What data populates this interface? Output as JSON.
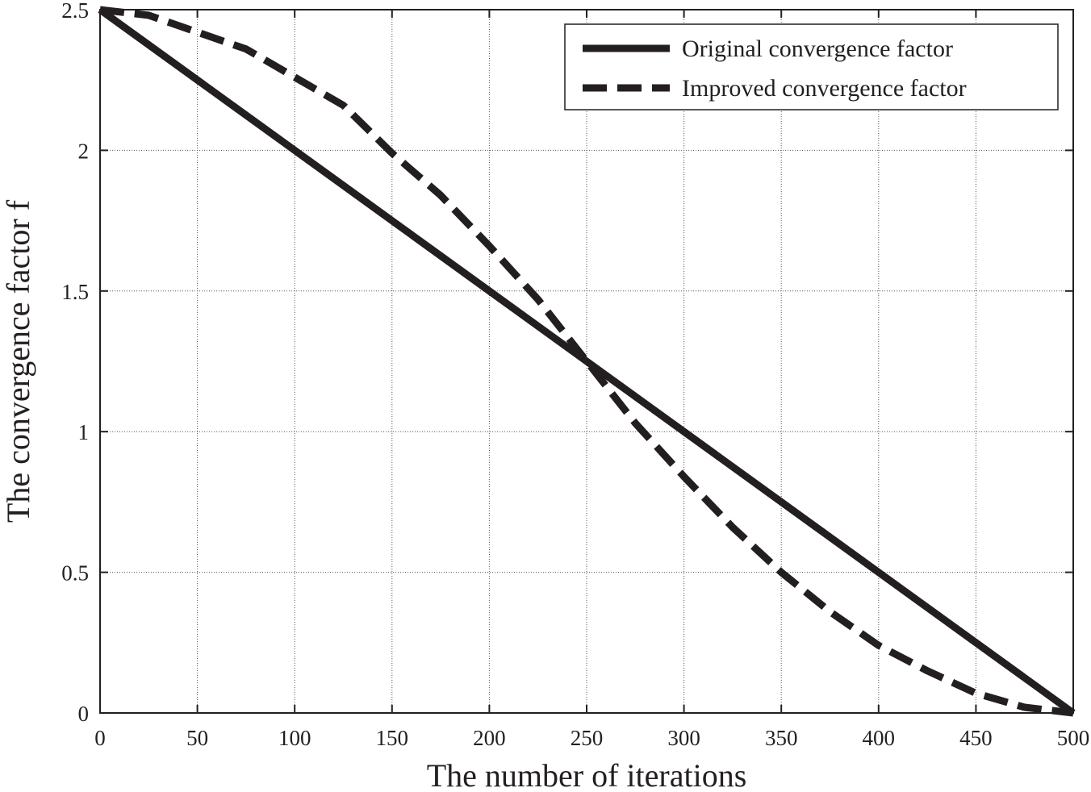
{
  "chart_data": {
    "type": "line",
    "title": "",
    "xlabel": "The number of iterations",
    "ylabel": "The convergence factor f",
    "xlim": [
      0,
      500
    ],
    "ylim": [
      0,
      2.5
    ],
    "xticks": [
      0,
      50,
      100,
      150,
      200,
      250,
      300,
      350,
      400,
      450,
      500
    ],
    "yticks": [
      0,
      0.5,
      1,
      1.5,
      2,
      2.5
    ],
    "xtick_labels": [
      "0",
      "50",
      "100",
      "150",
      "200",
      "250",
      "300",
      "350",
      "400",
      "450",
      "500"
    ],
    "ytick_labels": [
      "0",
      "0.5",
      "1",
      "1.5",
      "2",
      "2.5"
    ],
    "grid": true,
    "legend_position": "top-right",
    "series": [
      {
        "name": "Original convergence factor",
        "style": "solid",
        "color": "#231f20",
        "x": [
          0,
          50,
          100,
          150,
          200,
          250,
          300,
          350,
          400,
          450,
          500
        ],
        "y": [
          2.5,
          2.25,
          2.0,
          1.75,
          1.5,
          1.25,
          1.0,
          0.75,
          0.5,
          0.25,
          0.0
        ]
      },
      {
        "name": "Improved convergence factor",
        "style": "dashed",
        "color": "#231f20",
        "x": [
          0,
          25,
          50,
          75,
          100,
          125,
          150,
          175,
          200,
          225,
          250,
          275,
          300,
          325,
          350,
          375,
          400,
          425,
          450,
          475,
          500
        ],
        "y": [
          2.5,
          2.48,
          2.42,
          2.36,
          2.26,
          2.16,
          1.99,
          1.84,
          1.66,
          1.47,
          1.25,
          1.03,
          0.84,
          0.66,
          0.5,
          0.36,
          0.24,
          0.15,
          0.07,
          0.02,
          0.0
        ]
      }
    ]
  }
}
